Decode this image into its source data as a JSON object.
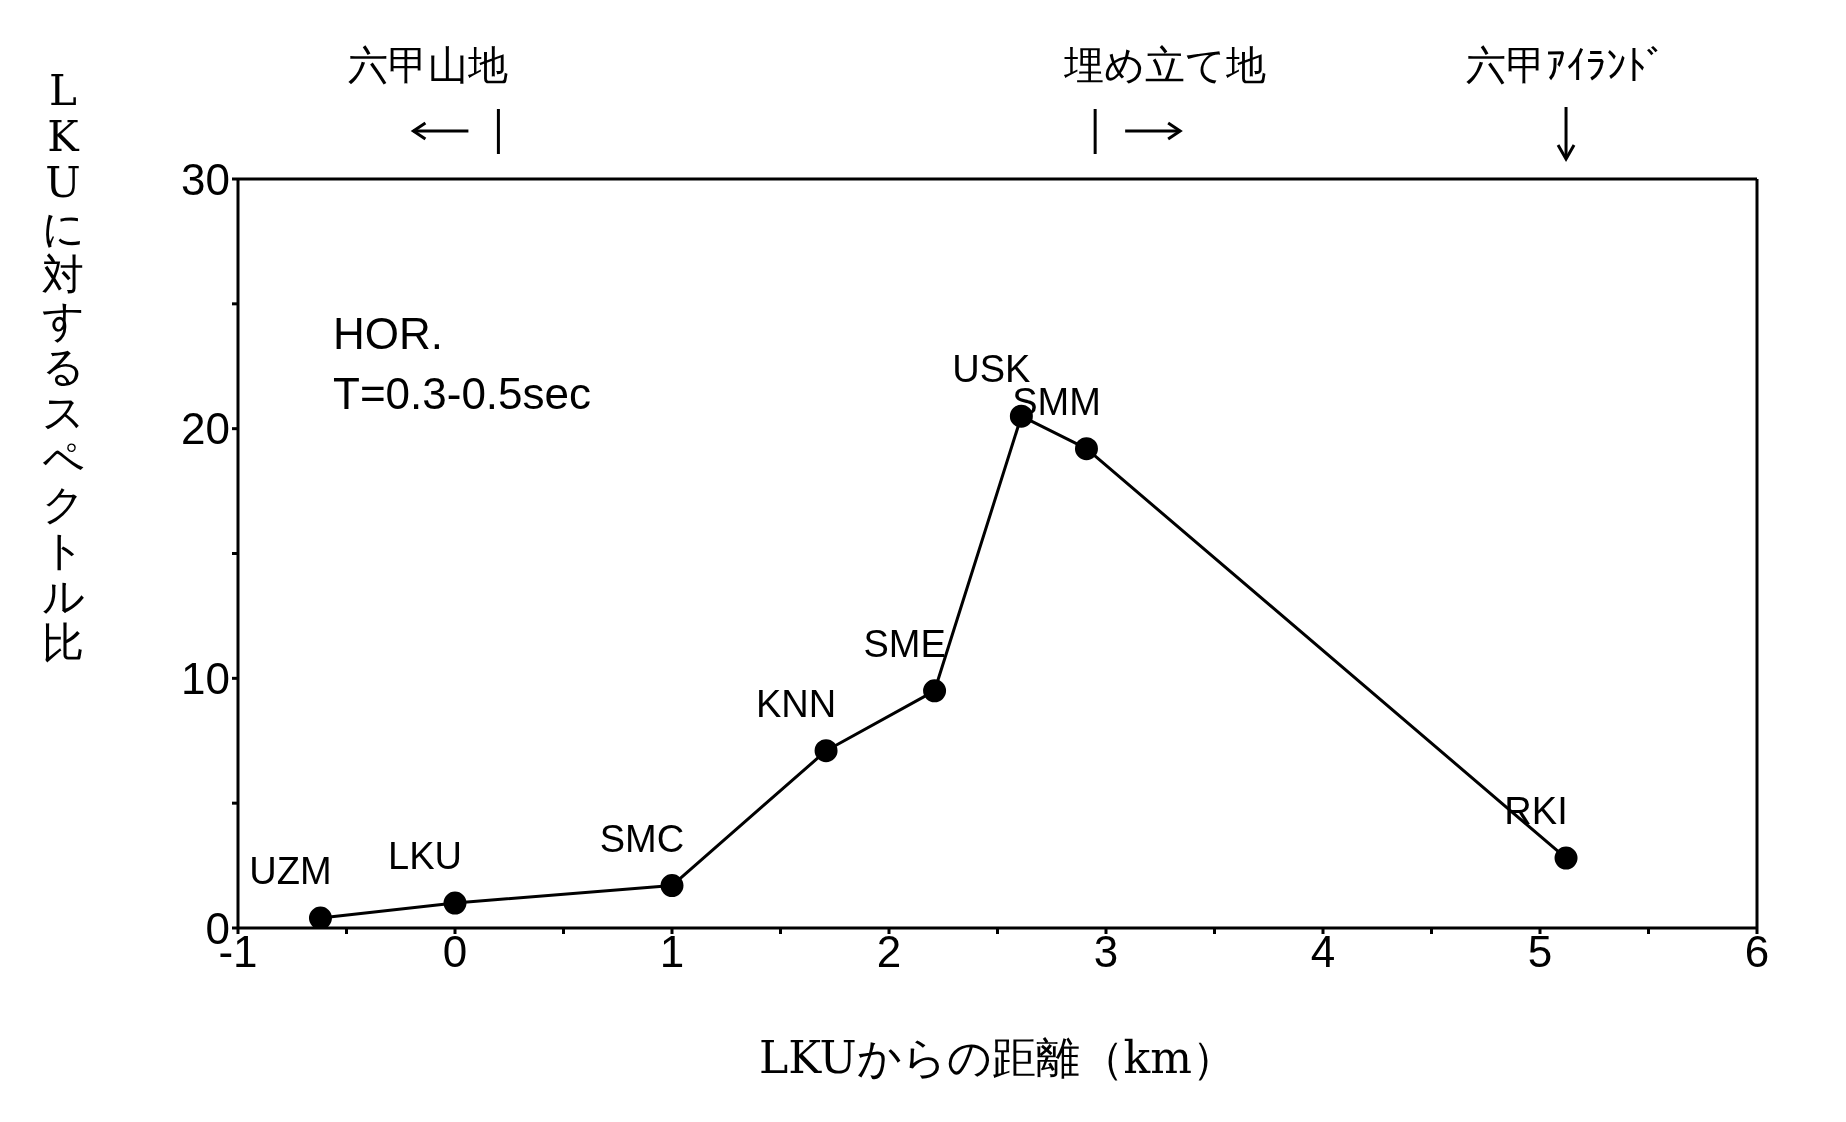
{
  "chart_data": {
    "type": "line",
    "xlabel": "LKUからの距離（km）",
    "ylabel": "LKUに対するスペクトル比",
    "x": [
      -0.62,
      0,
      1,
      1.71,
      2.21,
      2.61,
      2.91,
      5.12
    ],
    "series": [
      {
        "color": "#000000",
        "values": [
          0.4,
          1.0,
          1.7,
          7.1,
          9.5,
          20.5,
          19.2,
          2.8
        ]
      }
    ],
    "marker": "circle",
    "line_style": "solid",
    "grid": false,
    "xlim": [
      -1,
      6
    ],
    "xticks": [
      -1,
      {
        "value": -0.5,
        "label": null
      },
      0,
      {
        "value": 0.5,
        "label": null
      },
      1,
      {
        "value": 1.5,
        "label": null
      },
      2,
      {
        "value": 2.5,
        "label": null
      },
      3,
      {
        "value": 3.5,
        "label": null
      },
      4,
      {
        "value": 4.5,
        "label": null
      },
      5,
      {
        "value": 5.5,
        "label": null
      },
      6
    ],
    "ylim": [
      0,
      30
    ],
    "yticks": [
      0,
      {
        "value": 5,
        "label": null
      },
      10,
      {
        "value": 15,
        "label": null
      },
      20,
      {
        "value": 25,
        "label": null
      },
      30
    ],
    "annotations": [
      "HOR.",
      "T=0.3-0.5sec",
      {
        "text": "UZM",
        "x": -0.62,
        "y": 0.4
      },
      {
        "text": "LKU",
        "x": 0,
        "y": 1.0
      },
      {
        "text": "SMC",
        "x": 1,
        "y": 1.7
      },
      {
        "text": "KNN",
        "x": 1.71,
        "y": 7.1
      },
      {
        "text": "SME",
        "x": 2.21,
        "y": 9.5
      },
      {
        "text": "USK",
        "x": 2.61,
        "y": 20.5
      },
      {
        "text": "SMM",
        "x": 2.91,
        "y": 19.2
      },
      {
        "text": "RKI",
        "x": 5.12,
        "y": 2.8
      },
      "六甲山地",
      "埋め立て地",
      "六甲ｱｲﾗﾝﾄﾞ"
    ]
  }
}
